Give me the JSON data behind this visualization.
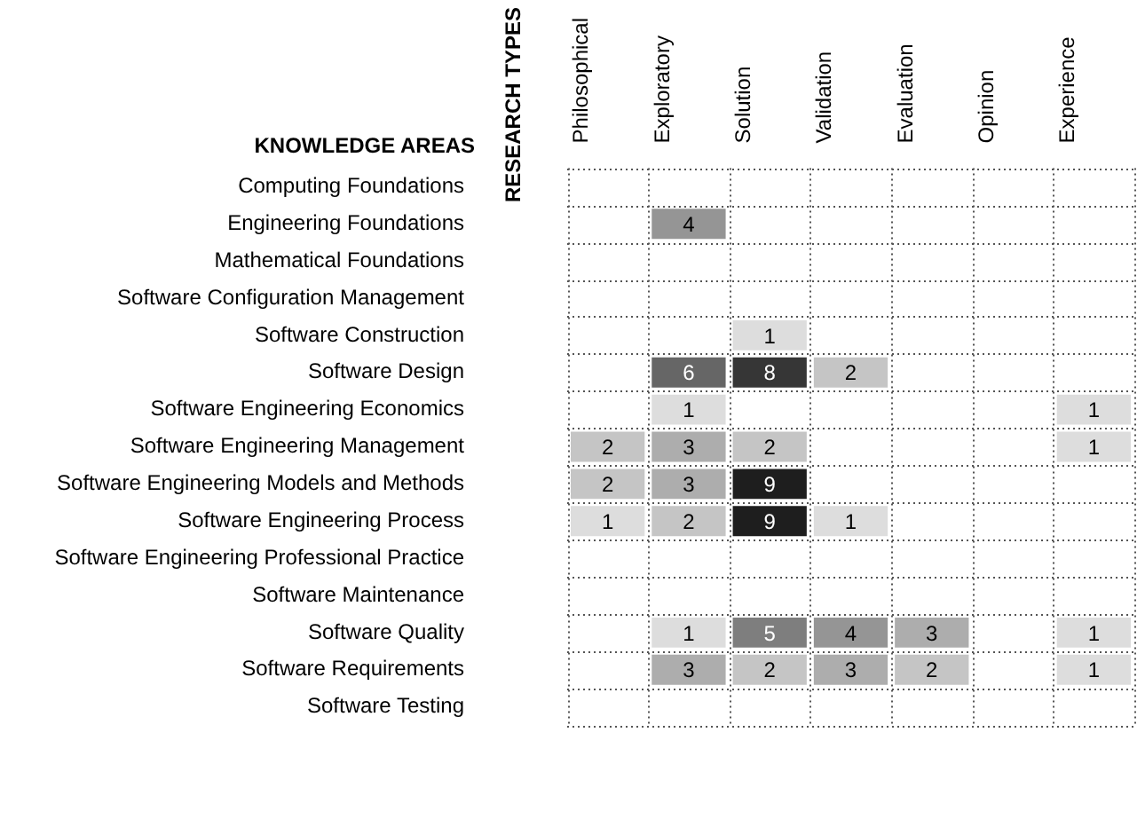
{
  "chart_data": {
    "type": "heatmap",
    "annotations": [
      "RESEARCH TYPES"
    ],
    "ylabel": "KNOWLEDGE AREAS",
    "categories": [
      "Philosophical",
      "Exploratory",
      "Solution",
      "Validation",
      "Evaluation",
      "Opinion",
      "Experience"
    ],
    "y_categories": [
      "Computing Foundations",
      "Engineering Foundations",
      "Mathematical Foundations",
      "Software Configuration Management",
      "Software Construction",
      "Software Design",
      "Software Engineering Economics",
      "Software Engineering Management",
      "Software Engineering Models and Methods",
      "Software Engineering Process",
      "Software Engineering Professional Practice",
      "Software Maintenance",
      "Software Quality",
      "Software Requirements",
      "Software Testing"
    ],
    "cells": [
      [
        null,
        null,
        null,
        null,
        null,
        null,
        null
      ],
      [
        null,
        4,
        null,
        null,
        null,
        null,
        null
      ],
      [
        null,
        null,
        null,
        null,
        null,
        null,
        null
      ],
      [
        null,
        null,
        null,
        null,
        null,
        null,
        null
      ],
      [
        null,
        null,
        1,
        null,
        null,
        null,
        null
      ],
      [
        null,
        6,
        8,
        2,
        null,
        null,
        null
      ],
      [
        null,
        1,
        null,
        null,
        null,
        null,
        1
      ],
      [
        2,
        3,
        2,
        null,
        null,
        null,
        1
      ],
      [
        2,
        3,
        9,
        null,
        null,
        null,
        null
      ],
      [
        1,
        2,
        9,
        1,
        null,
        null,
        null
      ],
      [
        null,
        null,
        null,
        null,
        null,
        null,
        null
      ],
      [
        null,
        null,
        null,
        null,
        null,
        null,
        null
      ],
      [
        null,
        1,
        5,
        4,
        3,
        null,
        1
      ],
      [
        null,
        3,
        2,
        3,
        2,
        null,
        1
      ],
      [
        null,
        null,
        null,
        null,
        null,
        null,
        null
      ]
    ],
    "grid": true,
    "data_labels": true
  }
}
